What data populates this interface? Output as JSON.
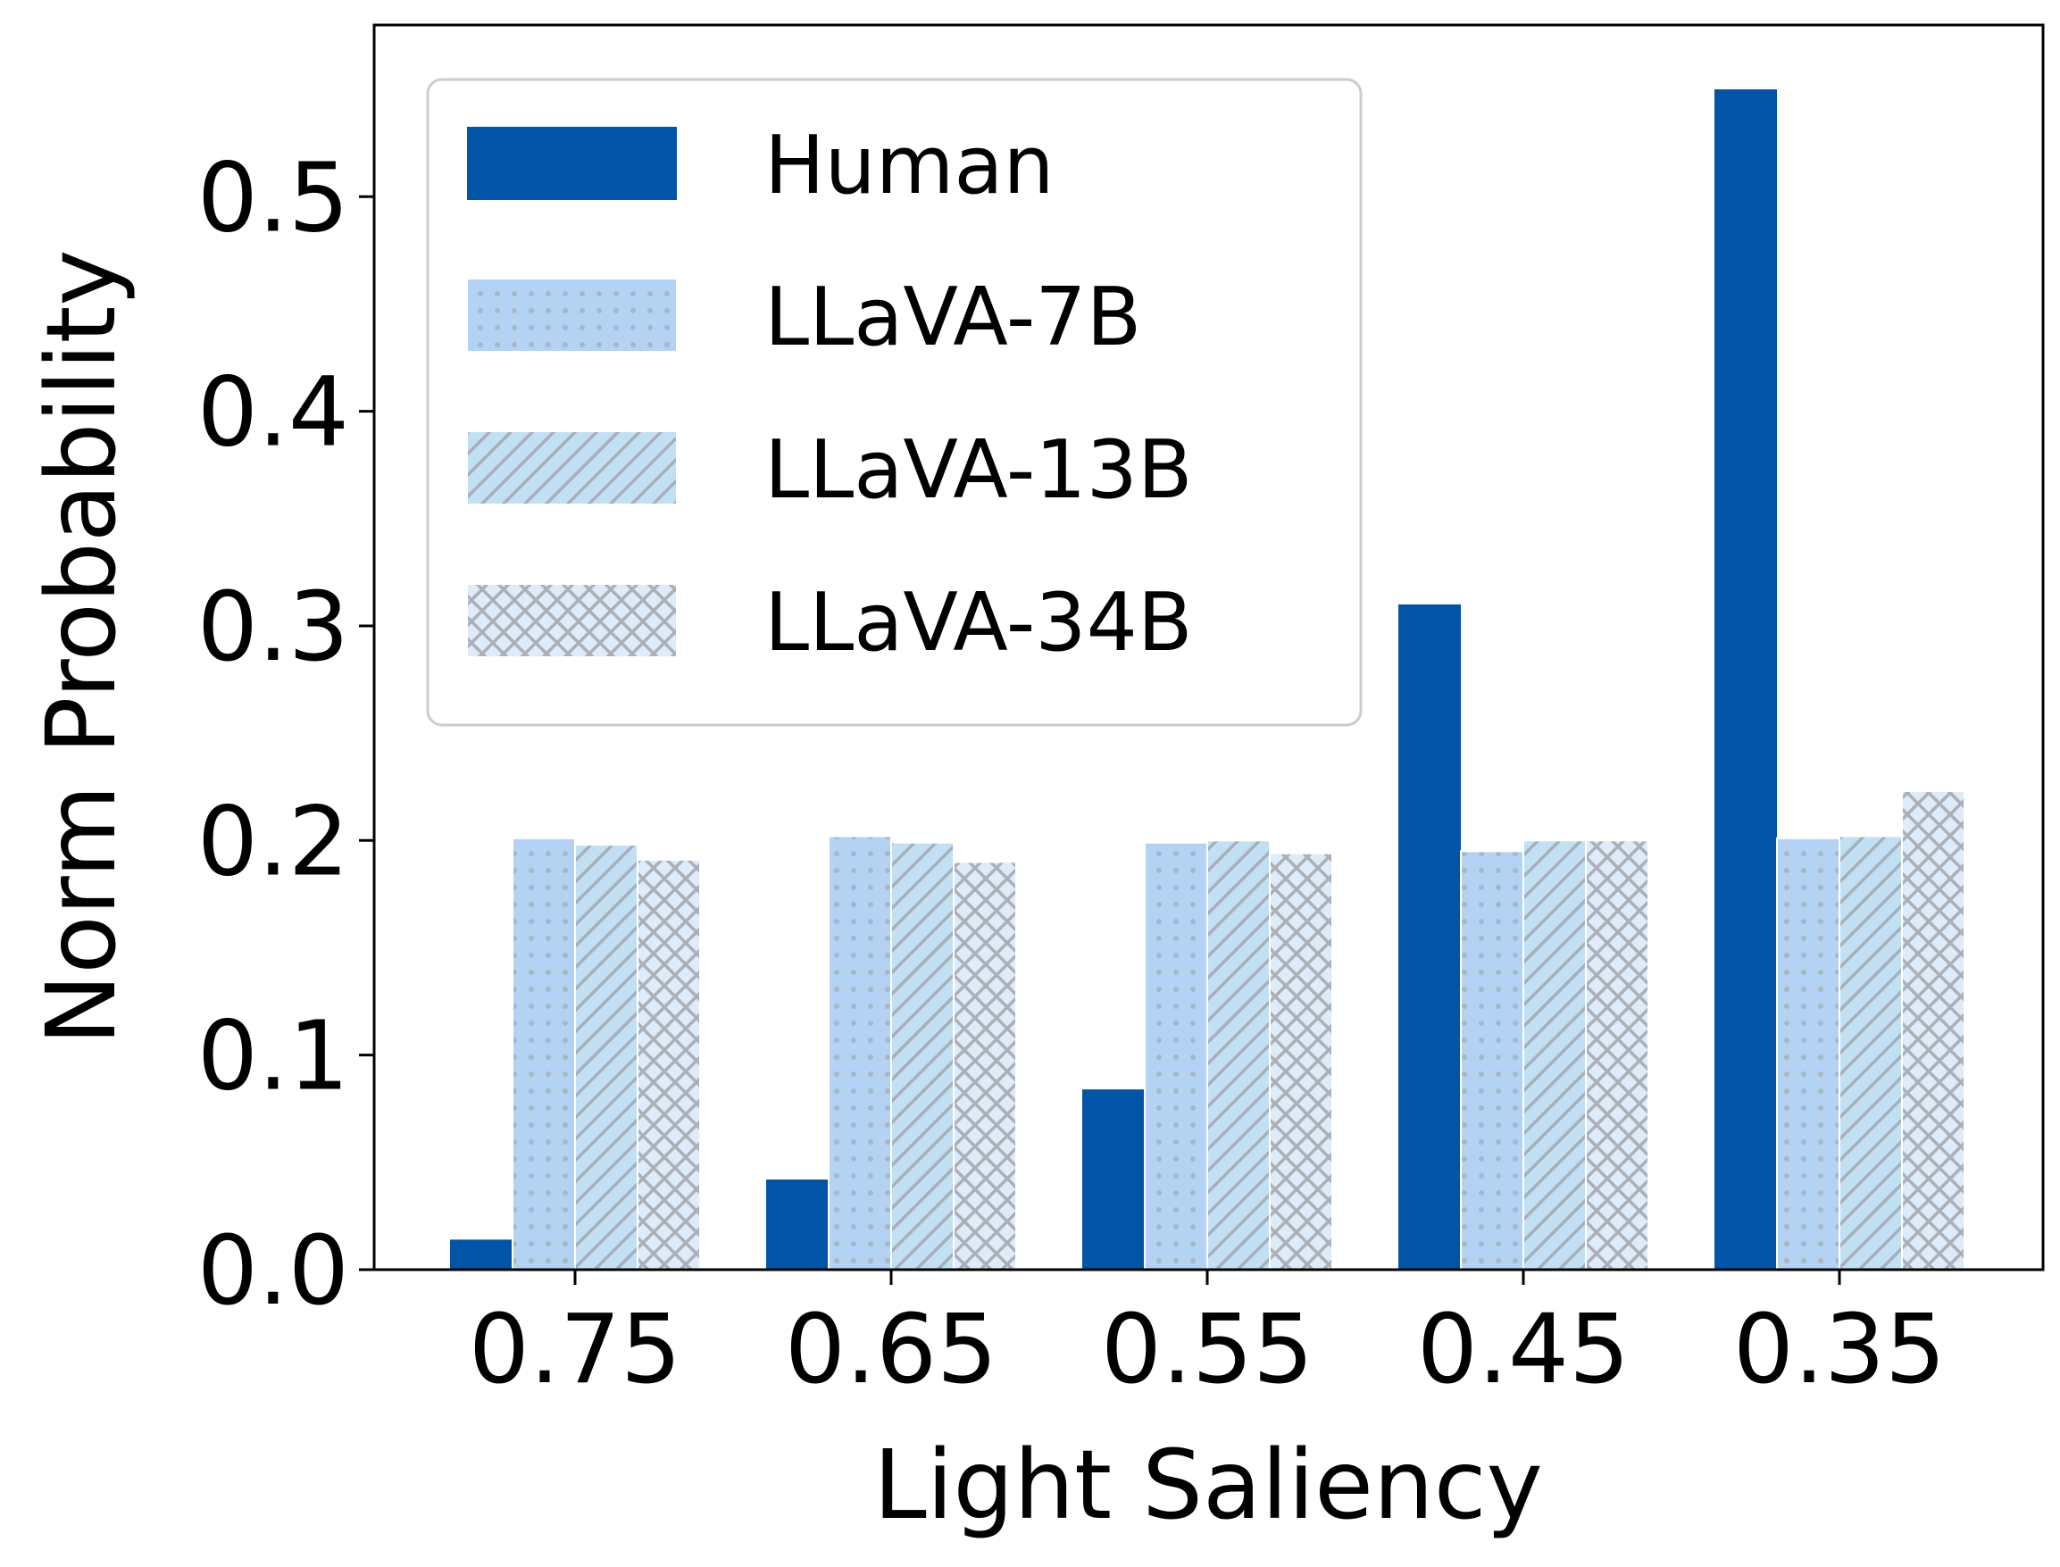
{
  "chart_data": {
    "type": "bar",
    "title": "",
    "xlabel": "Light Saliency",
    "ylabel": "Norm Probability",
    "categories": [
      "0.75",
      "0.65",
      "0.55",
      "0.45",
      "0.35"
    ],
    "ylim": [
      0,
      0.58
    ],
    "yticks": [
      "0.0",
      "0.1",
      "0.2",
      "0.3",
      "0.4",
      "0.5"
    ],
    "grid": false,
    "legend_position": "top-left",
    "series": [
      {
        "name": "Human",
        "values": [
          0.014,
          0.042,
          0.084,
          0.31,
          0.55
        ],
        "color": "#0254A6",
        "pattern": "solid"
      },
      {
        "name": "LLaVA-7B",
        "values": [
          0.201,
          0.202,
          0.199,
          0.195,
          0.201
        ],
        "color": "#B4D2F3",
        "pattern": "dots"
      },
      {
        "name": "LLaVA-13B",
        "values": [
          0.198,
          0.199,
          0.2,
          0.2,
          0.202
        ],
        "color": "#C2E0F4",
        "pattern": "diagonal"
      },
      {
        "name": "LLaVA-34B",
        "values": [
          0.191,
          0.19,
          0.194,
          0.2,
          0.223
        ],
        "color": "#DEEBF8",
        "pattern": "crosshatch"
      }
    ]
  }
}
